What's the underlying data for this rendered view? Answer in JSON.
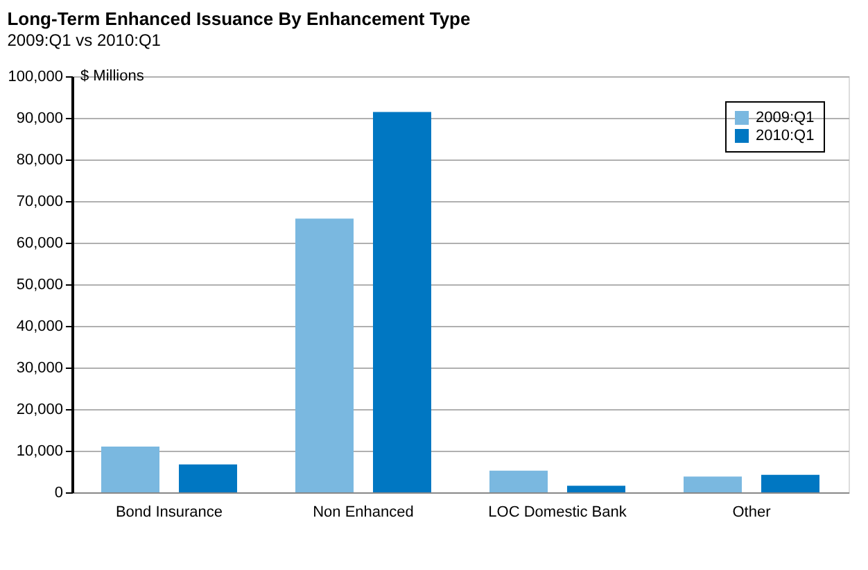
{
  "chart_data": {
    "type": "bar",
    "title": "Long-Term Enhanced Issuance By Enhancement Type",
    "subtitle": "2009:Q1 vs 2010:Q1",
    "ylabel": "$ Millions",
    "categories": [
      "Bond Insurance",
      "Non Enhanced",
      "LOC Domestic Bank",
      "Other"
    ],
    "series": [
      {
        "name": "2009:Q1",
        "color": "#7ab8e0",
        "values": [
          11000,
          65800,
          5200,
          3800
        ]
      },
      {
        "name": "2010:Q1",
        "color": "#0077c2",
        "values": [
          6700,
          91400,
          1600,
          4200
        ]
      }
    ],
    "ylim": [
      0,
      100000
    ],
    "yticks": [
      0,
      {
        "value": 10000,
        "label": "10,000"
      },
      {
        "value": 20000,
        "label": "20,000"
      },
      {
        "value": 30000,
        "label": "30,000"
      },
      {
        "value": 40000,
        "label": "40,000"
      },
      {
        "value": 50000,
        "label": "50,000"
      },
      {
        "value": 60000,
        "label": "60,000"
      },
      {
        "value": 70000,
        "label": "70,000"
      },
      {
        "value": 80000,
        "label": "80,000"
      },
      {
        "value": 90000,
        "label": "90,000"
      },
      {
        "value": 100000,
        "label": "100,000"
      }
    ],
    "grid": "y",
    "legend": "top right"
  }
}
